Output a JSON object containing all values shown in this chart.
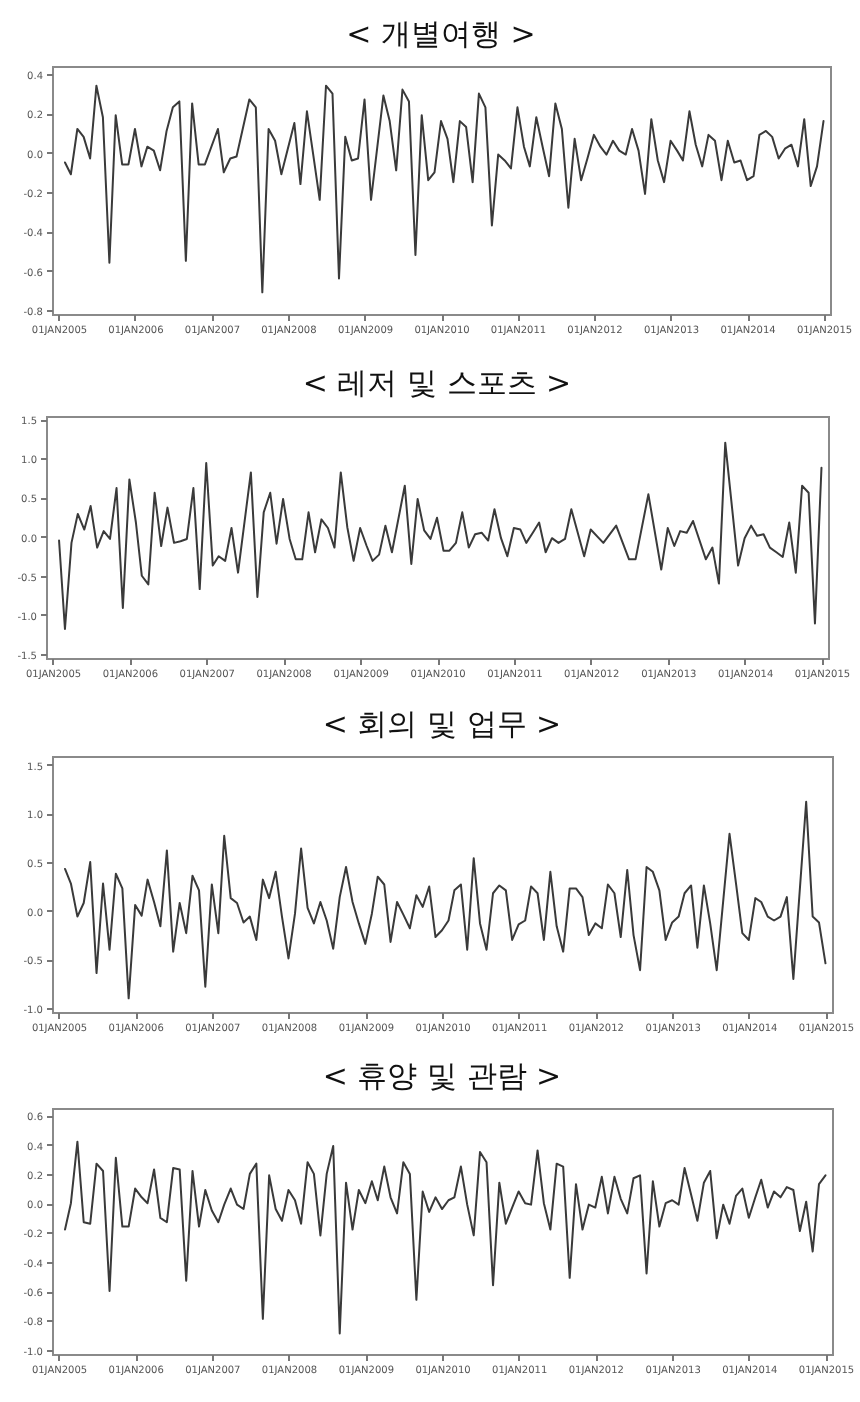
{
  "chart_data": [
    {
      "type": "line",
      "title": "< 개별여행 >",
      "x": [
        "2005-02",
        "2005-03",
        "2005-04",
        "2005-05",
        "2005-06",
        "2005-07",
        "2005-08",
        "2005-09",
        "2005-10",
        "2005-11",
        "2005-12",
        "2006-01",
        "2006-02",
        "2006-03",
        "2006-04",
        "2006-05",
        "2006-06",
        "2006-07",
        "2006-08",
        "2006-09",
        "2006-10",
        "2006-11",
        "2006-12",
        "2007-02",
        "2007-03",
        "2007-04",
        "2007-05",
        "2007-07",
        "2007-08",
        "2007-09",
        "2007-10",
        "2007-11",
        "2007-12",
        "2008-02",
        "2008-03",
        "2008-04",
        "2008-05",
        "2008-06",
        "2008-07",
        "2008-08",
        "2008-09",
        "2008-10",
        "2008-11",
        "2008-12",
        "2009-01",
        "2009-02",
        "2009-04",
        "2009-05",
        "2009-06",
        "2009-07",
        "2009-08",
        "2009-09",
        "2009-10",
        "2009-11",
        "2009-12",
        "2010-01",
        "2010-02",
        "2010-03",
        "2010-04",
        "2010-05",
        "2010-06",
        "2010-07",
        "2010-08",
        "2010-09",
        "2010-10",
        "2010-11",
        "2010-12",
        "2011-01",
        "2011-02",
        "2011-03",
        "2011-04",
        "2011-05",
        "2011-06",
        "2011-07",
        "2011-08",
        "2011-09",
        "2011-10",
        "2011-11",
        "2011-12",
        "2012-01",
        "2012-02",
        "2012-03",
        "2012-04",
        "2012-05",
        "2012-06",
        "2012-07",
        "2012-08",
        "2012-09",
        "2012-10",
        "2012-11",
        "2012-12",
        "2013-01",
        "2013-02",
        "2013-03",
        "2013-04",
        "2013-05",
        "2013-06",
        "2013-07",
        "2013-08",
        "2013-09",
        "2013-10",
        "2013-11",
        "2013-12",
        "2014-01",
        "2014-02",
        "2014-03",
        "2014-04",
        "2014-05",
        "2014-06",
        "2014-07",
        "2014-08",
        "2014-09",
        "2014-10",
        "2014-11",
        "2014-12",
        "2015-01"
      ],
      "series": [
        {
          "color": "#3a3a3a",
          "values": [
            -0.05,
            -0.11,
            0.12,
            0.08,
            -0.03,
            0.34,
            0.18,
            -0.56,
            0.19,
            -0.06,
            -0.06,
            0.12,
            -0.07,
            0.03,
            0.01,
            -0.09,
            0.11,
            0.23,
            0.26,
            -0.55,
            0.25,
            -0.06,
            -0.06,
            0.12,
            -0.1,
            -0.03,
            -0.02,
            0.27,
            0.23,
            -0.71,
            0.12,
            0.06,
            -0.11,
            0.15,
            -0.16,
            0.21,
            -0.01,
            -0.24,
            0.34,
            0.3,
            -0.64,
            0.08,
            -0.04,
            -0.03,
            0.27,
            -0.24,
            0.29,
            0.16,
            -0.09,
            0.32,
            0.26,
            -0.52,
            0.19,
            -0.14,
            -0.1,
            0.16,
            0.07,
            -0.15,
            0.16,
            0.13,
            -0.15,
            0.3,
            0.23,
            -0.37,
            -0.01,
            -0.04,
            -0.08,
            0.23,
            0.03,
            -0.07,
            0.18,
            0.03,
            -0.12,
            0.25,
            0.12,
            -0.28,
            0.07,
            -0.14,
            -0.03,
            0.09,
            0.03,
            -0.01,
            0.06,
            0.01,
            -0.01,
            0.12,
            0.01,
            -0.21,
            0.17,
            -0.04,
            -0.15,
            0.06,
            0.01,
            -0.04,
            0.21,
            0.04,
            -0.07,
            0.09,
            0.06,
            -0.14,
            0.06,
            -0.05,
            -0.04,
            -0.14,
            -0.12,
            0.09,
            0.11,
            0.08,
            -0.03,
            0.02,
            0.04,
            -0.07,
            0.17,
            -0.17,
            -0.07,
            0.16
          ]
        }
      ],
      "xlim": [
        "2004-12",
        "2015-02"
      ],
      "xticks": [
        {
          "value": "2005-01-01",
          "label": "01JAN2005"
        },
        {
          "value": "2006-01-01",
          "label": "01JAN2006"
        },
        {
          "value": "2007-01-01",
          "label": "01JAN2007"
        },
        {
          "value": "2008-01-01",
          "label": "01JAN2008"
        },
        {
          "value": "2009-01-01",
          "label": "01JAN2009"
        },
        {
          "value": "2010-01-01",
          "label": "01JAN2010"
        },
        {
          "value": "2011-01-01",
          "label": "01JAN2011"
        },
        {
          "value": "2012-01-01",
          "label": "01JAN2012"
        },
        {
          "value": "2013-01-01",
          "label": "01JAN2013"
        },
        {
          "value": "2014-01-01",
          "label": "01JAN2014"
        },
        {
          "value": "2015-01-01",
          "label": "01JAN2015"
        }
      ],
      "ylim": [
        -0.82,
        0.44
      ],
      "yticks": [
        -0.8,
        -0.6,
        -0.4,
        -0.2,
        {
          "value": 0,
          "label": "0.0"
        },
        0.2,
        0.4
      ]
    },
    {
      "type": "line",
      "title": "< 레저 및 스포츠 >",
      "x": [
        "2005-02",
        "2005-03",
        "2005-04",
        "2005-05",
        "2005-06",
        "2005-07",
        "2005-08",
        "2005-09",
        "2005-10",
        "2005-11",
        "2005-12",
        "2006-01",
        "2006-02",
        "2006-03",
        "2006-04",
        "2006-05",
        "2006-06",
        "2006-07",
        "2006-08",
        "2006-09",
        "2006-10",
        "2006-11",
        "2006-12",
        "2007-01",
        "2007-02",
        "2007-03",
        "2007-04",
        "2007-05",
        "2007-06",
        "2007-08",
        "2007-09",
        "2007-10",
        "2007-11",
        "2007-12",
        "2008-01",
        "2008-02",
        "2008-03",
        "2008-04",
        "2008-05",
        "2008-06",
        "2008-07",
        "2008-08",
        "2008-09",
        "2008-10",
        "2008-11",
        "2008-12",
        "2009-01",
        "2009-02",
        "2009-03",
        "2009-04",
        "2009-05",
        "2009-06",
        "2009-08",
        "2009-09",
        "2009-10",
        "2009-11",
        "2009-12",
        "2010-01",
        "2010-02",
        "2010-03",
        "2010-04",
        "2010-05",
        "2010-06",
        "2010-07",
        "2010-08",
        "2010-09",
        "2010-10",
        "2010-11",
        "2010-12",
        "2011-01",
        "2011-02",
        "2011-03",
        "2011-04",
        "2011-05",
        "2011-06",
        "2011-07",
        "2011-08",
        "2011-09",
        "2011-10",
        "2011-12",
        "2012-01",
        "2012-03",
        "2012-05",
        "2012-07",
        "2012-08",
        "2012-10",
        "2012-12",
        "2013-01",
        "2013-02",
        "2013-03",
        "2013-04",
        "2013-05",
        "2013-07",
        "2013-08",
        "2013-09",
        "2013-10",
        "2013-12",
        "2014-01",
        "2014-02",
        "2014-03",
        "2014-04",
        "2014-05",
        "2014-06",
        "2014-07",
        "2014-08",
        "2014-09",
        "2014-10",
        "2014-11",
        "2014-12",
        "2015-01"
      ],
      "series": [
        {
          "color": "#3a3a3a",
          "values": [
            -0.05,
            -1.18,
            -0.08,
            0.29,
            0.09,
            0.39,
            -0.14,
            0.07,
            -0.03,
            0.62,
            -0.91,
            0.73,
            0.18,
            -0.5,
            -0.61,
            0.56,
            -0.12,
            0.37,
            -0.08,
            -0.06,
            -0.03,
            0.62,
            -0.67,
            0.94,
            -0.37,
            -0.25,
            -0.31,
            0.11,
            -0.46,
            0.82,
            -0.77,
            0.31,
            0.56,
            -0.09,
            0.48,
            -0.03,
            -0.29,
            -0.29,
            0.31,
            -0.2,
            0.22,
            0.11,
            -0.14,
            0.82,
            0.12,
            -0.31,
            0.11,
            -0.12,
            -0.31,
            -0.23,
            0.14,
            -0.2,
            0.65,
            -0.35,
            0.48,
            0.08,
            -0.03,
            0.24,
            -0.18,
            -0.18,
            -0.08,
            0.31,
            -0.14,
            0.03,
            0.05,
            -0.05,
            0.35,
            -0.02,
            -0.25,
            0.11,
            0.09,
            -0.08,
            0.05,
            0.18,
            -0.2,
            -0.02,
            -0.08,
            -0.03,
            0.35,
            -0.25,
            0.09,
            -0.08,
            0.14,
            -0.29,
            -0.29,
            0.54,
            -0.42,
            0.11,
            -0.12,
            0.07,
            0.05,
            0.2,
            -0.29,
            -0.14,
            -0.6,
            1.2,
            -0.37,
            -0.02,
            0.14,
            0.01,
            0.03,
            -0.14,
            -0.2,
            -0.26,
            0.18,
            -0.46,
            0.65,
            0.56,
            -1.11,
            0.88
          ]
        }
      ],
      "xlim": [
        "2004-12",
        "2015-02"
      ],
      "xticks": [
        {
          "value": "2005-01-01",
          "label": "01JAN2005"
        },
        {
          "value": "2006-01-01",
          "label": "01JAN2006"
        },
        {
          "value": "2007-01-01",
          "label": "01JAN2007"
        },
        {
          "value": "2008-01-01",
          "label": "01JAN2008"
        },
        {
          "value": "2009-01-01",
          "label": "01JAN2009"
        },
        {
          "value": "2010-01-01",
          "label": "01JAN2010"
        },
        {
          "value": "2011-01-01",
          "label": "01JAN2011"
        },
        {
          "value": "2012-01-01",
          "label": "01JAN2012"
        },
        {
          "value": "2013-01-01",
          "label": "01JAN2013"
        },
        {
          "value": "2014-01-01",
          "label": "01JAN2014"
        },
        {
          "value": "2015-01-01",
          "label": "01JAN2015"
        }
      ],
      "ylim": [
        -1.55,
        1.54
      ],
      "yticks": [
        -1.5,
        {
          "value": -1,
          "label": "-1.0"
        },
        -0.5,
        {
          "value": 0,
          "label": "0.0"
        },
        0.5,
        {
          "value": 1,
          "label": "1.0"
        },
        1.5
      ]
    },
    {
      "type": "line",
      "title": "< 회의 및 업무 >",
      "x": [
        "2005-02",
        "2005-03",
        "2005-04",
        "2005-05",
        "2005-06",
        "2005-07",
        "2005-08",
        "2005-09",
        "2005-10",
        "2005-11",
        "2005-12",
        "2006-01",
        "2006-02",
        "2006-03",
        "2006-04",
        "2006-05",
        "2006-06",
        "2006-07",
        "2006-08",
        "2006-09",
        "2006-10",
        "2006-11",
        "2006-12",
        "2007-01",
        "2007-02",
        "2007-03",
        "2007-04",
        "2007-05",
        "2007-06",
        "2007-07",
        "2007-08",
        "2007-09",
        "2007-10",
        "2007-11",
        "2007-12",
        "2008-01",
        "2008-02",
        "2008-03",
        "2008-04",
        "2008-05",
        "2008-06",
        "2008-07",
        "2008-08",
        "2008-09",
        "2008-10",
        "2008-11",
        "2008-12",
        "2009-01",
        "2009-02",
        "2009-03",
        "2009-04",
        "2009-05",
        "2009-06",
        "2009-07",
        "2009-08",
        "2009-09",
        "2009-10",
        "2009-11",
        "2009-12",
        "2010-01",
        "2010-02",
        "2010-03",
        "2010-04",
        "2010-05",
        "2010-06",
        "2010-07",
        "2010-08",
        "2010-09",
        "2010-10",
        "2010-11",
        "2010-12",
        "2011-01",
        "2011-02",
        "2011-03",
        "2011-04",
        "2011-05",
        "2011-06",
        "2011-07",
        "2011-08",
        "2011-09",
        "2011-10",
        "2011-11",
        "2011-12",
        "2012-01",
        "2012-02",
        "2012-03",
        "2012-04",
        "2012-05",
        "2012-06",
        "2012-07",
        "2012-08",
        "2012-09",
        "2012-10",
        "2012-11",
        "2012-12",
        "2013-01",
        "2013-02",
        "2013-03",
        "2013-04",
        "2013-05",
        "2013-06",
        "2013-07",
        "2013-08",
        "2013-10",
        "2013-11",
        "2013-12",
        "2014-01",
        "2014-02",
        "2014-03",
        "2014-04",
        "2014-05",
        "2014-06",
        "2014-07",
        "2014-08",
        "2014-10",
        "2014-11",
        "2014-12",
        "2015-01"
      ],
      "series": [
        {
          "color": "#3a3a3a",
          "values": [
            0.43,
            0.28,
            -0.06,
            0.08,
            0.5,
            -0.64,
            0.28,
            -0.4,
            0.38,
            0.23,
            -0.9,
            0.06,
            -0.05,
            0.32,
            0.09,
            -0.16,
            0.62,
            -0.42,
            0.08,
            -0.23,
            0.36,
            0.21,
            -0.78,
            0.27,
            -0.23,
            0.77,
            0.13,
            0.08,
            -0.12,
            -0.06,
            -0.3,
            0.32,
            0.13,
            0.4,
            -0.06,
            -0.49,
            -0.03,
            0.64,
            0.03,
            -0.13,
            0.09,
            -0.1,
            -0.39,
            0.14,
            0.45,
            0.09,
            -0.13,
            -0.34,
            -0.03,
            0.35,
            0.27,
            -0.32,
            0.09,
            -0.04,
            -0.18,
            0.16,
            0.04,
            0.25,
            -0.27,
            -0.2,
            -0.1,
            0.21,
            0.27,
            -0.4,
            0.54,
            -0.13,
            -0.4,
            0.18,
            0.26,
            0.21,
            -0.3,
            -0.14,
            -0.1,
            0.25,
            0.18,
            -0.3,
            0.4,
            -0.16,
            -0.42,
            0.23,
            0.23,
            0.14,
            -0.25,
            -0.13,
            -0.18,
            0.27,
            0.18,
            -0.27,
            0.42,
            -0.25,
            -0.61,
            0.45,
            0.4,
            0.21,
            -0.3,
            -0.12,
            -0.06,
            0.18,
            0.26,
            -0.38,
            0.26,
            -0.13,
            -0.61,
            0.79,
            0.28,
            -0.23,
            -0.3,
            0.13,
            0.09,
            -0.06,
            -0.1,
            -0.06,
            0.14,
            -0.7,
            1.12,
            -0.06,
            -0.12,
            -0.54
          ]
        }
      ],
      "xlim": [
        "2004-12",
        "2015-02"
      ],
      "xticks": [
        {
          "value": "2005-01-01",
          "label": "01JAN2005"
        },
        {
          "value": "2006-01-01",
          "label": "01JAN2006"
        },
        {
          "value": "2007-01-01",
          "label": "01JAN2007"
        },
        {
          "value": "2008-01-01",
          "label": "01JAN2008"
        },
        {
          "value": "2009-01-01",
          "label": "01JAN2009"
        },
        {
          "value": "2010-01-01",
          "label": "01JAN2010"
        },
        {
          "value": "2011-01-01",
          "label": "01JAN2011"
        },
        {
          "value": "2012-01-01",
          "label": "01JAN2012"
        },
        {
          "value": "2013-01-01",
          "label": "01JAN2013"
        },
        {
          "value": "2014-01-01",
          "label": "01JAN2014"
        },
        {
          "value": "2015-01-01",
          "label": "01JAN2015"
        }
      ],
      "ylim": [
        -1.04,
        1.59
      ],
      "yticks": [
        {
          "value": -1,
          "label": "-1.0"
        },
        -0.5,
        {
          "value": 0,
          "label": "0.0"
        },
        0.5,
        {
          "value": 1,
          "label": "1.0"
        },
        1.5
      ]
    },
    {
      "type": "line",
      "title": "< 휴양 및 관람 >",
      "x": [
        "2005-02",
        "2005-03",
        "2005-04",
        "2005-05",
        "2005-06",
        "2005-07",
        "2005-08",
        "2005-09",
        "2005-10",
        "2005-11",
        "2005-12",
        "2006-01",
        "2006-02",
        "2006-03",
        "2006-04",
        "2006-05",
        "2006-06",
        "2006-07",
        "2006-08",
        "2006-09",
        "2006-10",
        "2006-11",
        "2006-12",
        "2007-01",
        "2007-02",
        "2007-03",
        "2007-04",
        "2007-05",
        "2007-06",
        "2007-07",
        "2007-08",
        "2007-09",
        "2007-10",
        "2007-11",
        "2007-12",
        "2008-01",
        "2008-02",
        "2008-03",
        "2008-04",
        "2008-05",
        "2008-06",
        "2008-07",
        "2008-08",
        "2008-09",
        "2008-10",
        "2008-11",
        "2008-12",
        "2009-01",
        "2009-02",
        "2009-03",
        "2009-04",
        "2009-05",
        "2009-06",
        "2009-07",
        "2009-08",
        "2009-09",
        "2009-10",
        "2009-11",
        "2009-12",
        "2010-01",
        "2010-02",
        "2010-03",
        "2010-04",
        "2010-05",
        "2010-06",
        "2010-07",
        "2010-08",
        "2010-09",
        "2010-10",
        "2010-11",
        "2010-12",
        "2011-01",
        "2011-02",
        "2011-03",
        "2011-04",
        "2011-05",
        "2011-06",
        "2011-07",
        "2011-08",
        "2011-09",
        "2011-10",
        "2011-11",
        "2011-12",
        "2012-01",
        "2012-02",
        "2012-03",
        "2012-04",
        "2012-05",
        "2012-06",
        "2012-07",
        "2012-08",
        "2012-09",
        "2012-10",
        "2012-11",
        "2012-12",
        "2013-01",
        "2013-02",
        "2013-03",
        "2013-04",
        "2013-05",
        "2013-06",
        "2013-07",
        "2013-08",
        "2013-09",
        "2013-10",
        "2013-11",
        "2013-12",
        "2014-01",
        "2014-02",
        "2014-03",
        "2014-04",
        "2014-05",
        "2014-06",
        "2014-07",
        "2014-08",
        "2014-09",
        "2014-10",
        "2014-11",
        "2014-12",
        "2015-01"
      ],
      "series": [
        {
          "color": "#3a3a3a",
          "values": [
            -0.18,
            0.0,
            0.42,
            -0.13,
            -0.14,
            0.27,
            0.22,
            -0.6,
            0.31,
            -0.16,
            -0.16,
            0.1,
            0.04,
            0.0,
            0.23,
            -0.1,
            -0.13,
            0.24,
            0.23,
            -0.53,
            0.22,
            -0.16,
            0.09,
            -0.05,
            -0.13,
            -0.01,
            0.1,
            -0.01,
            -0.04,
            0.2,
            0.27,
            -0.79,
            0.19,
            -0.04,
            -0.12,
            0.09,
            0.02,
            -0.14,
            0.28,
            0.2,
            -0.22,
            0.2,
            0.39,
            -0.89,
            0.14,
            -0.18,
            0.09,
            0.0,
            0.15,
            0.02,
            0.25,
            0.04,
            -0.07,
            0.28,
            0.2,
            -0.66,
            0.08,
            -0.06,
            0.04,
            -0.04,
            0.02,
            0.04,
            0.25,
            -0.01,
            -0.22,
            0.35,
            0.28,
            -0.56,
            0.14,
            -0.14,
            -0.03,
            0.08,
            0.0,
            -0.01,
            0.36,
            0.0,
            -0.18,
            0.27,
            0.25,
            -0.51,
            0.13,
            -0.18,
            -0.01,
            -0.03,
            0.18,
            -0.07,
            0.18,
            0.03,
            -0.07,
            0.17,
            0.19,
            -0.48,
            0.15,
            -0.16,
            0.0,
            0.02,
            -0.01,
            0.24,
            0.06,
            -0.12,
            0.14,
            0.22,
            -0.24,
            -0.01,
            -0.14,
            0.05,
            0.1,
            -0.1,
            0.04,
            0.16,
            -0.03,
            0.08,
            0.04,
            0.11,
            0.09,
            -0.19,
            0.01,
            -0.33,
            0.13,
            0.19
          ]
        }
      ],
      "xlim": [
        "2004-12",
        "2015-02"
      ],
      "xticks": [
        {
          "value": "2005-01-01",
          "label": "01JAN2005"
        },
        {
          "value": "2006-01-01",
          "label": "01JAN2006"
        },
        {
          "value": "2007-01-01",
          "label": "01JAN2007"
        },
        {
          "value": "2008-01-01",
          "label": "01JAN2008"
        },
        {
          "value": "2009-01-01",
          "label": "01JAN2009"
        },
        {
          "value": "2010-01-01",
          "label": "01JAN2010"
        },
        {
          "value": "2011-01-01",
          "label": "01JAN2011"
        },
        {
          "value": "2012-01-01",
          "label": "01JAN2012"
        },
        {
          "value": "2013-01-01",
          "label": "01JAN2013"
        },
        {
          "value": "2014-01-01",
          "label": "01JAN2014"
        },
        {
          "value": "2015-01-01",
          "label": "01JAN2015"
        }
      ],
      "ylim": [
        -1.03,
        0.65
      ],
      "yticks": [
        {
          "value": -1,
          "label": "-1.0"
        },
        -0.8,
        -0.6,
        -0.4,
        -0.2,
        {
          "value": 0,
          "label": "0.0"
        },
        0.2,
        0.4,
        0.6
      ]
    }
  ]
}
